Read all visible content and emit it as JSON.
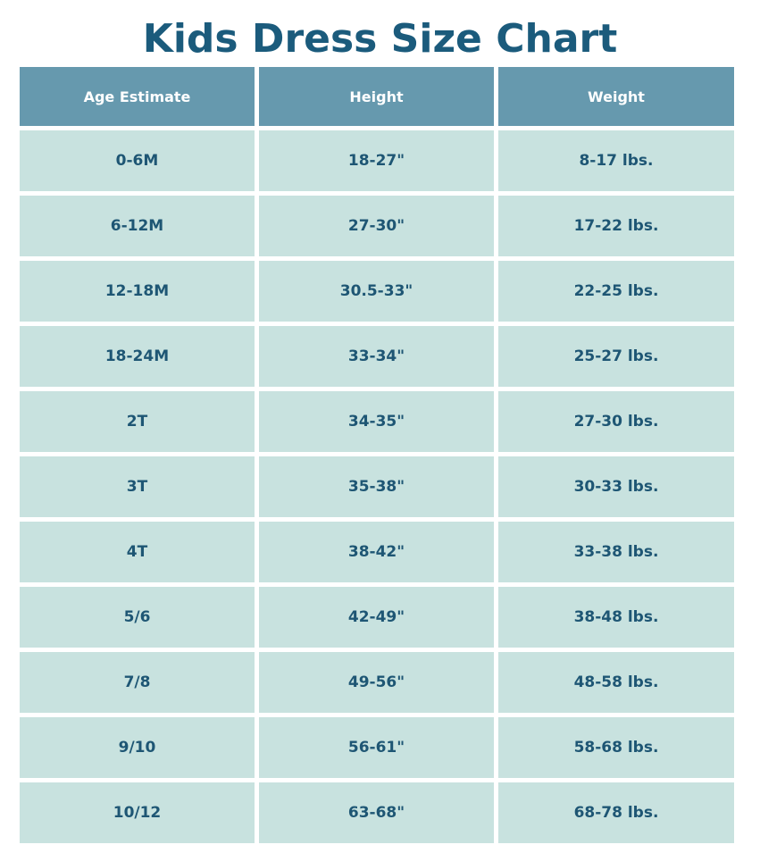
{
  "title": "Kids Dress Size Chart",
  "colors": {
    "title": "#1b5b7c",
    "header_bg": "#6699ae",
    "cell_bg": "#c8e2df",
    "cell_text": "#1e5674"
  },
  "chart_data": {
    "type": "table",
    "title": "Kids Dress Size Chart",
    "columns": [
      "Age Estimate",
      "Height",
      "Weight"
    ],
    "rows": [
      [
        "0-6M",
        "18-27\"",
        "8-17 lbs."
      ],
      [
        "6-12M",
        "27-30\"",
        "17-22 lbs."
      ],
      [
        "12-18M",
        "30.5-33\"",
        "22-25 lbs."
      ],
      [
        "18-24M",
        "33-34\"",
        "25-27 lbs."
      ],
      [
        "2T",
        "34-35\"",
        "27-30 lbs."
      ],
      [
        "3T",
        "35-38\"",
        "30-33 lbs."
      ],
      [
        "4T",
        "38-42\"",
        "33-38 lbs."
      ],
      [
        "5/6",
        "42-49\"",
        "38-48 lbs."
      ],
      [
        "7/8",
        "49-56\"",
        "48-58 lbs."
      ],
      [
        "9/10",
        "56-61\"",
        "58-68 lbs."
      ],
      [
        "10/12",
        "63-68\"",
        "68-78 lbs."
      ]
    ]
  }
}
